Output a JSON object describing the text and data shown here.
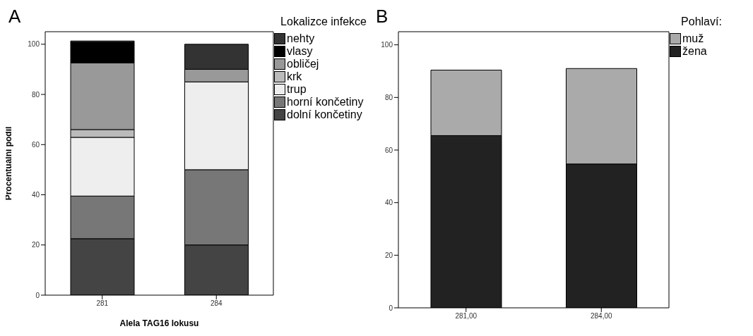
{
  "chart_data": [
    {
      "type": "bar",
      "stacked": true,
      "annotations": [
        "A"
      ],
      "xlabel": "Alela TAG16 lokusu",
      "ylabel": "Procentuální podíl",
      "legend_title": "Lokalizce infekce",
      "legend": "right",
      "categories": [
        "281",
        "284"
      ],
      "ylim": [
        0,
        105
      ],
      "yticks": [
        0,
        20,
        40,
        60,
        80,
        100
      ],
      "grid": false,
      "series": [
        {
          "name": "dolní končetiny",
          "color": "#444444",
          "values": [
            22.5,
            20
          ]
        },
        {
          "name": "horní končetiny",
          "color": "#777777",
          "values": [
            17,
            30
          ]
        },
        {
          "name": "trup",
          "color": "#eeeeee",
          "values": [
            23.4,
            35
          ]
        },
        {
          "name": "krk",
          "color": "#bbbbbb",
          "values": [
            3.1,
            0
          ]
        },
        {
          "name": "obličej",
          "color": "#999999",
          "values": [
            26.6,
            5
          ]
        },
        {
          "name": "vlasy",
          "color": "#000000",
          "values": [
            8.2,
            0
          ]
        },
        {
          "name": "nehty",
          "color": "#333333",
          "values": [
            0.5,
            10
          ]
        }
      ]
    },
    {
      "type": "bar",
      "stacked": true,
      "annotations": [
        "B"
      ],
      "legend_title": "Pohlaví:",
      "legend": "right",
      "categories": [
        "281,00",
        "284,00"
      ],
      "ylim": [
        0,
        105
      ],
      "yticks": [
        0,
        20,
        40,
        60,
        80,
        100
      ],
      "grid": false,
      "series": [
        {
          "name": "žena",
          "color": "#222222",
          "values": [
            65.5,
            54.7
          ]
        },
        {
          "name": "muž",
          "color": "#aaaaaa",
          "values": [
            24.9,
            36.3
          ]
        }
      ]
    }
  ]
}
